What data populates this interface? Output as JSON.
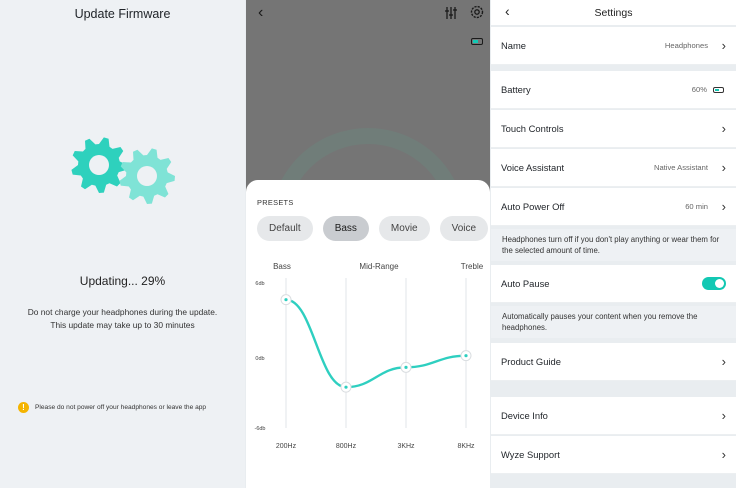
{
  "firmware": {
    "title": "Update Firmware",
    "status": "Updating... 29%",
    "progress_percent": 29,
    "description_line1": "Do not charge your headphones during the update.",
    "description_line2": "This update may take up to 30 minutes",
    "warning": "Please do not power off your headphones or leave the app",
    "warning_icon": "warning-icon",
    "gear_color": "#2ed1bd",
    "gear_color_light": "#7fe3d6"
  },
  "equalizer": {
    "battery_level": 0.6,
    "presets_title": "PRESETS",
    "presets": [
      "Default",
      "Bass",
      "Movie",
      "Voice"
    ],
    "active_preset": "Bass",
    "band_labels": [
      "Bass",
      "Mid-Range",
      "Treble"
    ],
    "db_labels": [
      "6db",
      "0db",
      "-6db"
    ],
    "freq_labels": [
      "200Hz",
      "800Hz",
      "3KHz",
      "8KHz"
    ],
    "gains_db": [
      5,
      -2.5,
      -0.8,
      0.2
    ],
    "curve_color": "#2ecfc0"
  },
  "settings": {
    "title": "Settings",
    "rows": {
      "name": {
        "label": "Name",
        "value": "Headphones"
      },
      "battery": {
        "label": "Battery",
        "value": "60%",
        "level": 0.6
      },
      "touch": {
        "label": "Touch Controls"
      },
      "voice": {
        "label": "Voice Assistant",
        "value": "Native Assistant"
      },
      "auto_power": {
        "label": "Auto Power Off",
        "value": "60 min"
      },
      "auto_pause": {
        "label": "Auto Pause",
        "enabled": true
      },
      "guide": {
        "label": "Product Guide"
      },
      "device": {
        "label": "Device Info"
      },
      "support": {
        "label": "Wyze Support"
      }
    },
    "auto_power_note": "Headphones turn off if you don't play anything or wear them for the selected amount of time.",
    "auto_pause_note": "Automatically pauses your content when you remove the headphones.",
    "accent": "#12c8b3"
  }
}
